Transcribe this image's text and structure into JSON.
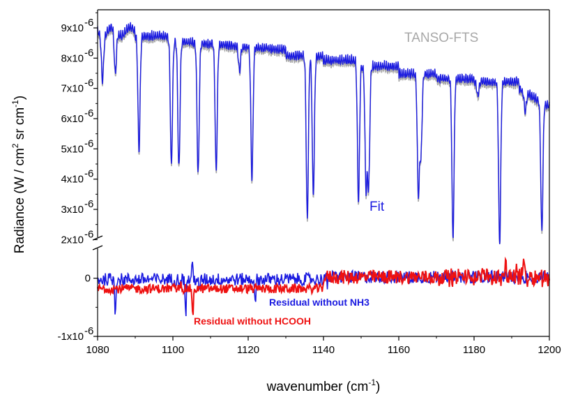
{
  "chart_data": {
    "type": "line",
    "xlabel": {
      "text": "wavenumber (cm",
      "sup": "-1",
      "tail": ")"
    },
    "ylabel": {
      "text": "Radiance (W / cm",
      "sup1": "2",
      "mid": " sr cm",
      "sup2": "-1",
      "tail": ")"
    },
    "xlim": [
      1080,
      1200
    ],
    "x_ticks": [
      1080,
      1100,
      1120,
      1140,
      1160,
      1180,
      1200
    ],
    "y_upper": {
      "range": [
        1.8,
        9.6
      ],
      "ticks": [
        {
          "value": 9,
          "label": "9x10",
          "exp": "-6"
        },
        {
          "value": 8,
          "label": "8x10",
          "exp": "-6"
        },
        {
          "value": 7,
          "label": "7x10",
          "exp": "-6"
        },
        {
          "value": 6,
          "label": "6x10",
          "exp": "-6"
        },
        {
          "value": 5,
          "label": "5x10",
          "exp": "-6"
        },
        {
          "value": 4,
          "label": "4x10",
          "exp": "-6"
        },
        {
          "value": 3,
          "label": "3x10",
          "exp": "-6"
        },
        {
          "value": 2,
          "label": "2x10",
          "exp": "-6"
        }
      ]
    },
    "y_lower": {
      "range": [
        -1.0,
        0.5
      ],
      "ticks": [
        {
          "value": 0,
          "label": "0",
          "exp": ""
        },
        {
          "value": -1,
          "label": "-1x10",
          "exp": "-6"
        }
      ]
    },
    "series": [
      {
        "name": "TANSO-FTS",
        "color": "#a8a8a8",
        "panel": "upper"
      },
      {
        "name": "Fit",
        "color": "#1a1ae0",
        "panel": "upper"
      },
      {
        "name": "Residual without NH3",
        "color": "#1a1ae0",
        "panel": "lower"
      },
      {
        "name": "Residual without HCOOH",
        "color": "#ee1111",
        "panel": "lower"
      }
    ],
    "absorption_lines": [
      {
        "x": 1081.3,
        "min": 7.5
      },
      {
        "x": 1084.7,
        "min": 7.7
      },
      {
        "x": 1091.0,
        "min": 5.2
      },
      {
        "x": 1099.6,
        "min": 4.7
      },
      {
        "x": 1101.6,
        "min": 4.55
      },
      {
        "x": 1106.7,
        "min": 4.4
      },
      {
        "x": 1111.5,
        "min": 4.5
      },
      {
        "x": 1117.7,
        "min": 7.8
      },
      {
        "x": 1121.0,
        "min": 4.25
      },
      {
        "x": 1130.2,
        "min": 8.3
      },
      {
        "x": 1135.7,
        "min": 2.95
      },
      {
        "x": 1137.3,
        "min": 3.7
      },
      {
        "x": 1149.3,
        "min": 3.5
      },
      {
        "x": 1151.3,
        "min": 4.0
      },
      {
        "x": 1152.0,
        "min": 4.05
      },
      {
        "x": 1165.2,
        "min": 3.75
      },
      {
        "x": 1165.9,
        "min": 5.1
      },
      {
        "x": 1174.4,
        "min": 2.3
      },
      {
        "x": 1181.0,
        "min": 7.0
      },
      {
        "x": 1186.8,
        "min": 2.05
      },
      {
        "x": 1193.6,
        "min": 6.5
      },
      {
        "x": 1198.0,
        "min": 2.5
      }
    ],
    "annotations": {
      "tanso": "TANSO-FTS",
      "fit": "Fit",
      "res_nh3": "Residual without NH3",
      "res_hcooh": "Residual without HCOOH"
    }
  }
}
